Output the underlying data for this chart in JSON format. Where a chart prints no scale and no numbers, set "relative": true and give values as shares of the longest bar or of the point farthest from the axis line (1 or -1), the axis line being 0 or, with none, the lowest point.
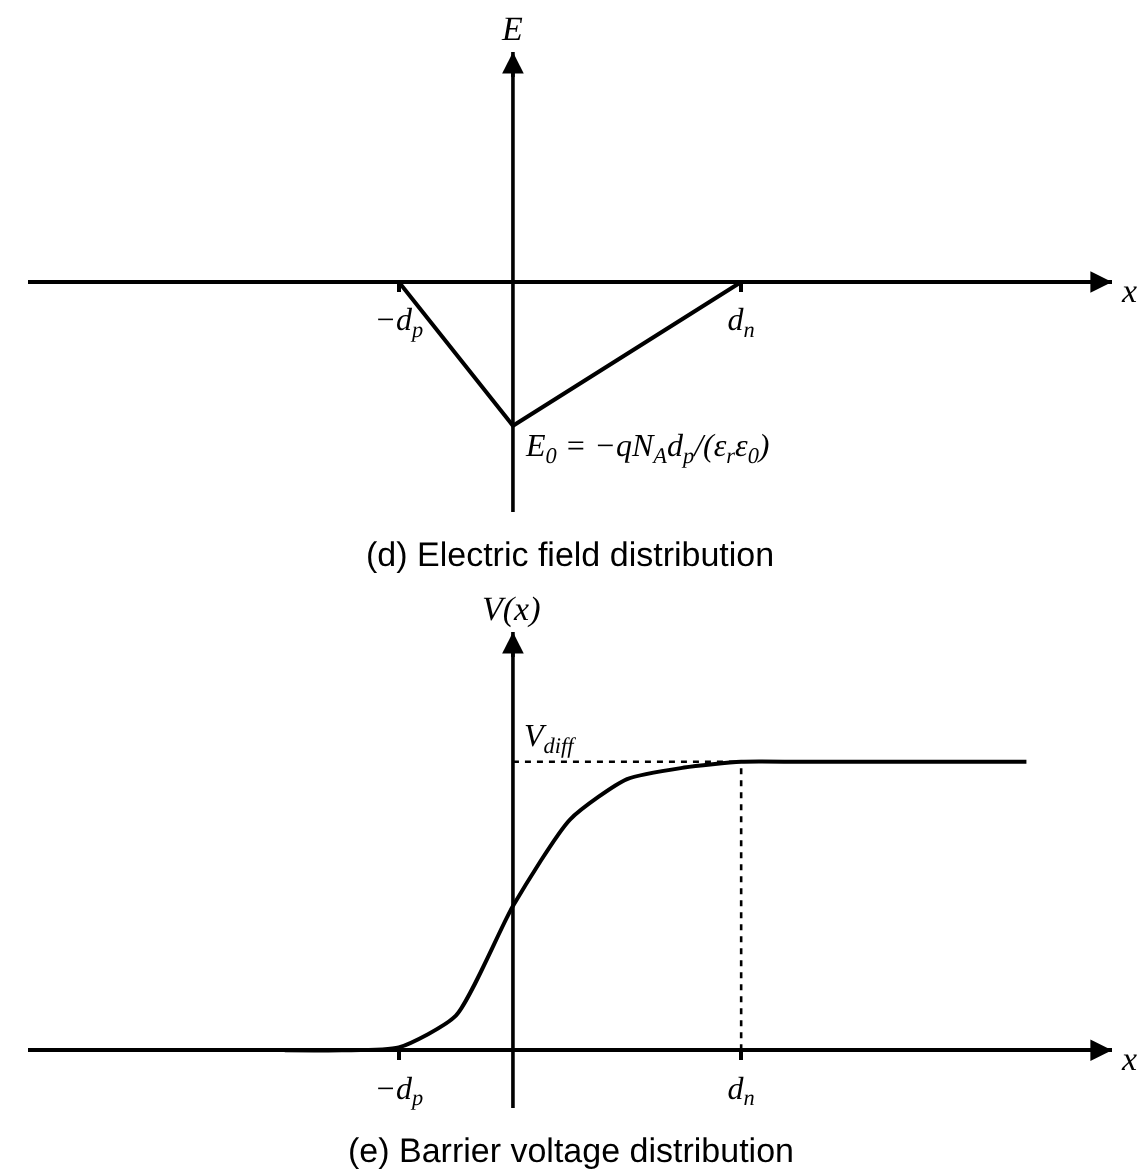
{
  "chart_data": [
    {
      "type": "line",
      "relative": true,
      "title": "(d) Electric field distribution",
      "xlabel": "x",
      "ylabel": "E",
      "categories": [
        null,
        null,
        null,
        null,
        null,
        null,
        "−d$_{p}$",
        null,
        null,
        null,
        null,
        null,
        "d$_{n}$",
        null,
        null,
        null,
        null,
        null,
        null
      ],
      "series": [
        {
          "color": "#000000",
          "values": [
            null,
            null,
            null,
            null,
            null,
            null,
            0,
            null,
            -1,
            null,
            null,
            null,
            0,
            null,
            null,
            null,
            null,
            null,
            null
          ]
        }
      ],
      "annotations": [
        "E$_{0}$ = −qN$_{A}$d$_{p}$/(ε$_{r}$ε$_{0}$)"
      ],
      "marker": "none",
      "line_style": "solid"
    },
    {
      "type": "line",
      "relative": true,
      "title": "(e) Barrier voltage distribution",
      "xlabel": "x",
      "ylabel": "V(x)",
      "categories": [
        null,
        null,
        null,
        null,
        null,
        null,
        "−d$_{p}$",
        null,
        null,
        null,
        null,
        null,
        "d$_{n}$",
        null,
        null,
        null,
        null,
        null,
        null
      ],
      "series": [
        {
          "color": "#000000",
          "values": [
            null,
            null,
            null,
            null,
            0,
            0,
            0.01,
            0.12,
            0.5,
            0.8,
            0.94,
            0.98,
            1,
            1,
            1,
            1,
            1,
            1,
            null
          ]
        }
      ],
      "ref_lines": [
        {
          "axis": "y",
          "value": 1,
          "label": "V$_{diff}$",
          "line_style": "dotted"
        },
        {
          "axis": "x",
          "value": "d$_{n}$",
          "line_style": "dotted"
        }
      ],
      "marker": "none",
      "line_style": "solid"
    }
  ]
}
